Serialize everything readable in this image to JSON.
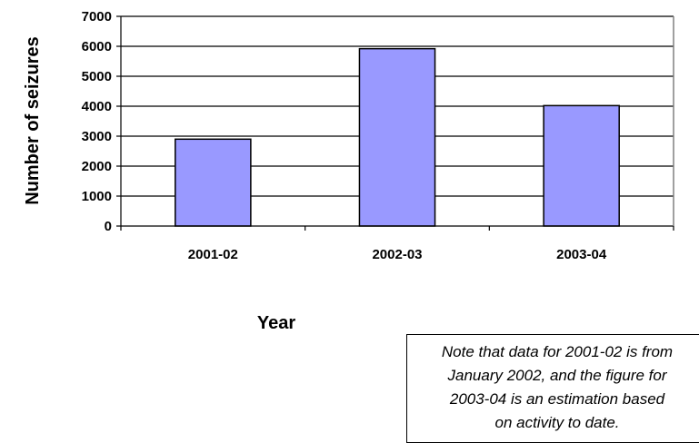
{
  "chart_data": {
    "type": "bar",
    "categories": [
      "2001-02",
      "2002-03",
      "2003-04"
    ],
    "values": [
      2900,
      5920,
      4020
    ],
    "xlabel": "Year",
    "ylabel": "Number of seizures",
    "ylim": [
      0,
      7000
    ],
    "yticks": [
      "0",
      "1000",
      "2000",
      "3000",
      "4000",
      "5000",
      "6000",
      "7000"
    ],
    "grid": true,
    "bar_color": "#9999ff",
    "note": "Note that data for 2001-02 is from\nJanuary 2002, and the figure for\n2003-04 is an estimation based\non activity to date."
  }
}
